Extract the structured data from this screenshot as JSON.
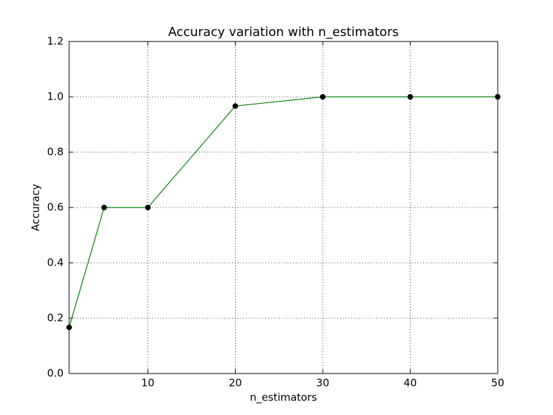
{
  "chart_data": {
    "type": "line",
    "title": "Accuracy variation with n_estimators",
    "x_label": "n_estimators",
    "y_label": "Accuracy",
    "x": [
      1,
      5,
      10,
      20,
      30,
      40,
      50
    ],
    "series": [
      {
        "name": "Accuracy",
        "color": "#008000",
        "marker_color": "#000000",
        "values": [
          0.1667,
          0.6,
          0.6,
          0.9667,
          1.0,
          1.0,
          1.0
        ]
      }
    ],
    "xlim": [
      1,
      50
    ],
    "xticks": [
      10,
      20,
      30,
      40,
      50
    ],
    "ylim": [
      0,
      1.2
    ],
    "yticks": [
      {
        "value": 0,
        "label": "0.0"
      },
      0.2,
      0.4,
      0.6,
      0.8,
      {
        "value": 1,
        "label": "1.0"
      },
      1.2
    ],
    "grid": true
  }
}
